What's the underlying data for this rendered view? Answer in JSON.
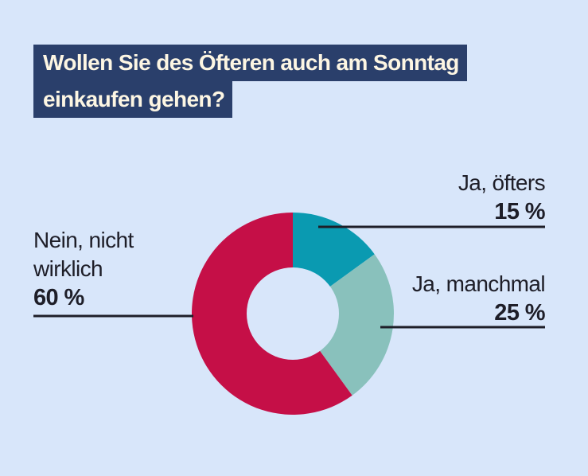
{
  "title": {
    "line1": "Wollen Sie des Öfteren auch am Sonntag",
    "line2": "einkaufen gehen?"
  },
  "colors": {
    "background": "#d8e6fa",
    "title_bg": "#2a3f6b",
    "title_text": "#fdf6e3",
    "ja_oefters": "#0a9ab1",
    "ja_manchmal": "#89c1bc",
    "nein": "#c50f47",
    "leader": "#1e1e28"
  },
  "labels": {
    "ja_oefters": {
      "name": "Ja, öfters",
      "pct": "15 %"
    },
    "ja_manchmal": {
      "name": "Ja, manchmal",
      "pct": "25 %"
    },
    "nein": {
      "name_line1": "Nein, nicht",
      "name_line2": "wirklich",
      "pct": "60 %"
    }
  },
  "chart_data": {
    "type": "pie",
    "variant": "donut",
    "title": "Wollen Sie des Öfteren auch am Sonntag einkaufen gehen?",
    "categories": [
      "Ja, öfters",
      "Ja, manchmal",
      "Nein, nicht wirklich"
    ],
    "values": [
      15,
      25,
      60
    ],
    "unit": "%",
    "start": "12 o'clock",
    "direction": "clockwise",
    "legend": "direct labels with leader lines"
  }
}
